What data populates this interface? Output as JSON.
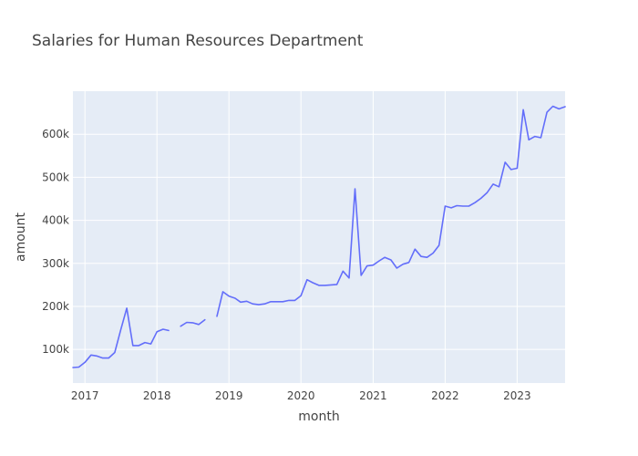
{
  "chart_data": {
    "type": "line",
    "title": "Salaries for Human Resources Department",
    "xlabel": "month",
    "ylabel": "amount",
    "x_range": [
      "2016-11-01",
      "2023-09-01"
    ],
    "ylim": [
      22000,
      700000
    ],
    "x_ticks": [
      {
        "date": "2017-01-01",
        "label": "2017"
      },
      {
        "date": "2018-01-01",
        "label": "2018"
      },
      {
        "date": "2019-01-01",
        "label": "2019"
      },
      {
        "date": "2020-01-01",
        "label": "2020"
      },
      {
        "date": "2021-01-01",
        "label": "2021"
      },
      {
        "date": "2022-01-01",
        "label": "2022"
      },
      {
        "date": "2023-01-01",
        "label": "2023"
      }
    ],
    "y_ticks": [
      {
        "value": 100000,
        "label": "100k"
      },
      {
        "value": 200000,
        "label": "200k"
      },
      {
        "value": 300000,
        "label": "300k"
      },
      {
        "value": 400000,
        "label": "400k"
      },
      {
        "value": 500000,
        "label": "500k"
      },
      {
        "value": 600000,
        "label": "600k"
      }
    ],
    "grid": true,
    "colors": {
      "plot_background": "#E5ECF6",
      "grid": "#FFFFFF",
      "line": "#636EFA",
      "text": "#444444"
    },
    "series": [
      {
        "segments": [
          [
            [
              "2016-11-01",
              58000
            ],
            [
              "2016-12-01",
              59000
            ],
            [
              "2017-01-01",
              70000
            ],
            [
              "2017-02-01",
              87000
            ],
            [
              "2017-03-01",
              85000
            ],
            [
              "2017-04-01",
              80000
            ],
            [
              "2017-05-01",
              80000
            ],
            [
              "2017-06-01",
              93000
            ],
            [
              "2017-07-01",
              145000
            ],
            [
              "2017-08-01",
              196000
            ],
            [
              "2017-09-01",
              109000
            ],
            [
              "2017-10-01",
              109000
            ],
            [
              "2017-11-01",
              116000
            ],
            [
              "2017-12-01",
              113000
            ],
            [
              "2018-01-01",
              141000
            ],
            [
              "2018-02-01",
              147000
            ],
            [
              "2018-03-01",
              144000
            ]
          ],
          [
            [
              "2018-05-01",
              154000
            ],
            [
              "2018-06-01",
              163000
            ],
            [
              "2018-07-01",
              162000
            ],
            [
              "2018-08-01",
              158000
            ],
            [
              "2018-09-01",
              169000
            ]
          ],
          [
            [
              "2018-11-01",
              177000
            ],
            [
              "2018-12-01",
              234000
            ],
            [
              "2019-01-01",
              224000
            ],
            [
              "2019-02-01",
              219000
            ],
            [
              "2019-03-01",
              210000
            ],
            [
              "2019-04-01",
              212000
            ],
            [
              "2019-05-01",
              206000
            ],
            [
              "2019-06-01",
              204000
            ],
            [
              "2019-07-01",
              206000
            ],
            [
              "2019-08-01",
              211000
            ],
            [
              "2019-09-01",
              211000
            ],
            [
              "2019-10-01",
              211000
            ],
            [
              "2019-11-01",
              214000
            ],
            [
              "2019-12-01",
              214000
            ],
            [
              "2020-01-01",
              225000
            ],
            [
              "2020-02-01",
              262000
            ],
            [
              "2020-03-01",
              255000
            ],
            [
              "2020-04-01",
              249000
            ],
            [
              "2020-05-01",
              249000
            ],
            [
              "2020-06-01",
              250000
            ],
            [
              "2020-07-01",
              251000
            ],
            [
              "2020-08-01",
              282000
            ],
            [
              "2020-09-01",
              266000
            ],
            [
              "2020-10-01",
              473000
            ],
            [
              "2020-11-01",
              272000
            ],
            [
              "2020-12-01",
              294000
            ],
            [
              "2021-01-01",
              296000
            ],
            [
              "2021-02-01",
              306000
            ],
            [
              "2021-03-01",
              314000
            ],
            [
              "2021-04-01",
              308000
            ],
            [
              "2021-05-01",
              289000
            ],
            [
              "2021-06-01",
              298000
            ],
            [
              "2021-07-01",
              302000
            ],
            [
              "2021-08-01",
              333000
            ],
            [
              "2021-09-01",
              316000
            ],
            [
              "2021-10-01",
              314000
            ],
            [
              "2021-11-01",
              324000
            ],
            [
              "2021-12-01",
              342000
            ],
            [
              "2022-01-01",
              433000
            ],
            [
              "2022-02-01",
              429000
            ],
            [
              "2022-03-01",
              434000
            ],
            [
              "2022-04-01",
              433000
            ],
            [
              "2022-05-01",
              433000
            ],
            [
              "2022-06-01",
              441000
            ],
            [
              "2022-07-01",
              451000
            ],
            [
              "2022-08-01",
              464000
            ],
            [
              "2022-09-01",
              484000
            ],
            [
              "2022-10-01",
              478000
            ],
            [
              "2022-11-01",
              535000
            ],
            [
              "2022-12-01",
              518000
            ],
            [
              "2023-01-01",
              521000
            ],
            [
              "2023-02-01",
              657000
            ],
            [
              "2023-03-01",
              587000
            ],
            [
              "2023-04-01",
              595000
            ],
            [
              "2023-05-01",
              592000
            ],
            [
              "2023-06-01",
              651000
            ],
            [
              "2023-07-01",
              665000
            ],
            [
              "2023-08-01",
              659000
            ],
            [
              "2023-09-01",
              664000
            ]
          ]
        ]
      }
    ]
  }
}
